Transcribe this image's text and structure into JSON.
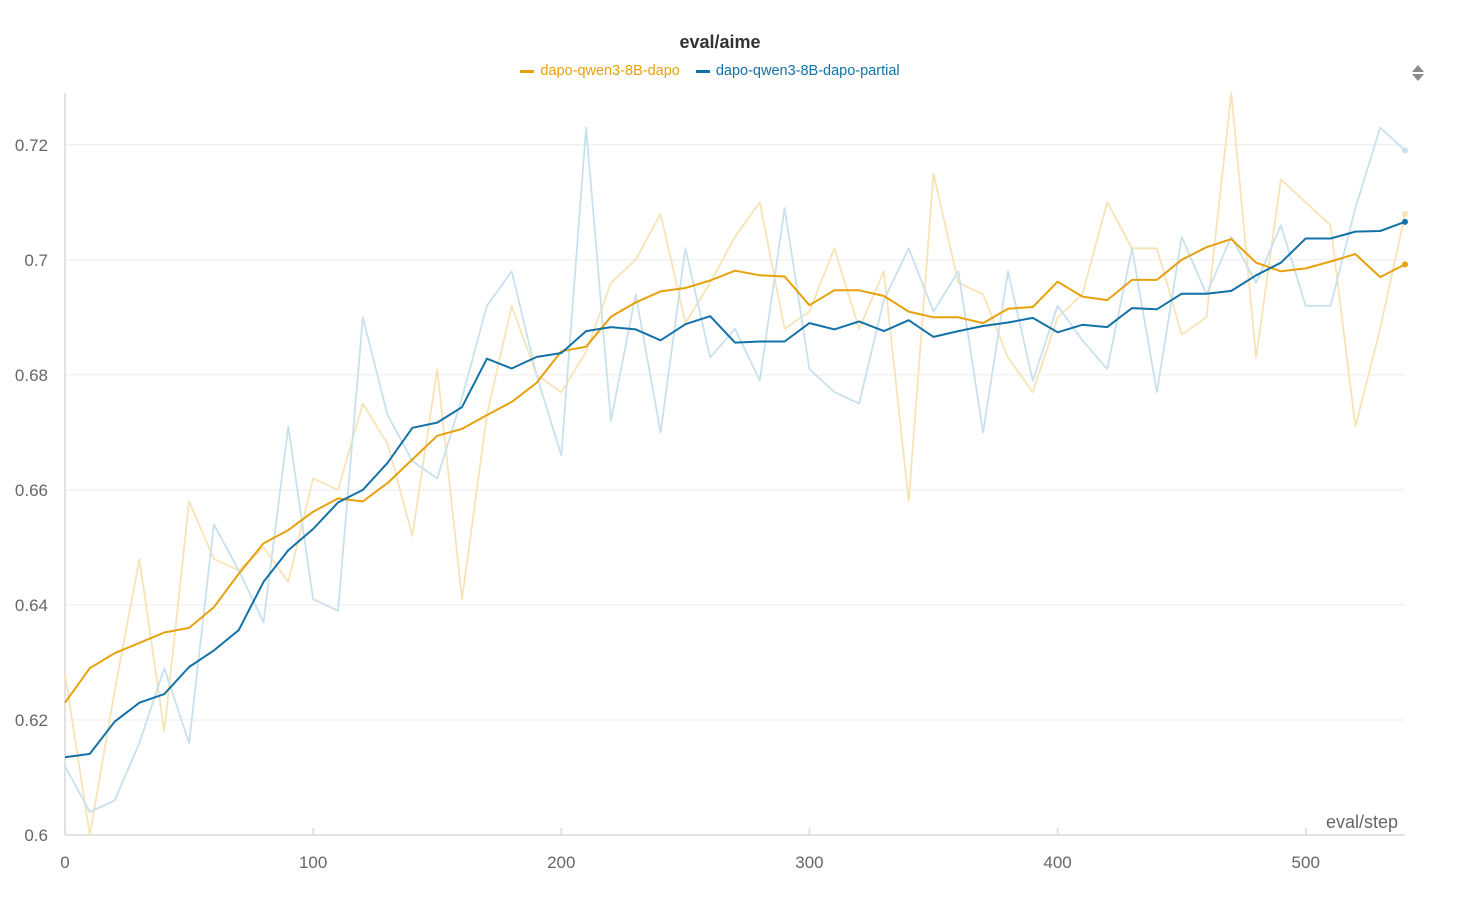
{
  "chart_data": {
    "type": "line",
    "title": "eval/aime",
    "xlabel": "eval/step",
    "ylabel": "",
    "xlim": [
      0,
      540
    ],
    "ylim": [
      0.6,
      0.729
    ],
    "xticks": [
      0,
      100,
      200,
      300,
      400,
      500
    ],
    "xtick_labels": [
      "0",
      "100",
      "200",
      "300",
      "400",
      "500"
    ],
    "yticks": [
      0.6,
      0.62,
      0.64,
      0.66,
      0.68,
      0.7,
      0.72
    ],
    "ytick_labels": [
      "0.6",
      "0.62",
      "0.64",
      "0.66",
      "0.68",
      "0.7",
      "0.72"
    ],
    "grid": true,
    "legend_position": "top-center",
    "x": [
      0,
      10,
      20,
      30,
      40,
      50,
      60,
      70,
      80,
      90,
      100,
      110,
      120,
      130,
      140,
      150,
      160,
      170,
      180,
      190,
      200,
      210,
      220,
      230,
      240,
      250,
      260,
      270,
      280,
      290,
      300,
      310,
      320,
      330,
      340,
      350,
      360,
      370,
      380,
      390,
      400,
      410,
      420,
      430,
      440,
      450,
      460,
      470,
      480,
      490,
      500,
      510,
      520,
      530,
      540
    ],
    "series": [
      {
        "name": "dapo-qwen3-8B-dapo",
        "color": "#e6a10c",
        "raw_color": "#f7e3b6",
        "raw": [
          0.628,
          0.6,
          0.625,
          0.648,
          0.618,
          0.658,
          0.648,
          0.646,
          0.65,
          0.644,
          0.662,
          0.66,
          0.675,
          0.668,
          0.652,
          0.681,
          0.641,
          0.673,
          0.692,
          0.68,
          0.677,
          0.684,
          0.696,
          0.7,
          0.708,
          0.689,
          0.696,
          0.704,
          0.71,
          0.688,
          0.691,
          0.702,
          0.688,
          0.698,
          0.658,
          0.715,
          0.696,
          0.694,
          0.683,
          0.677,
          0.69,
          0.694,
          0.71,
          0.702,
          0.702,
          0.687,
          0.69,
          0.729,
          0.683,
          0.714,
          0.71,
          0.706,
          0.671,
          0.688,
          0.708
        ],
        "smoothed": [
          0.623,
          0.629,
          0.6316,
          0.6334,
          0.6352,
          0.636,
          0.6396,
          0.6454,
          0.6507,
          0.653,
          0.6562,
          0.6585,
          0.658,
          0.6612,
          0.6653,
          0.6694,
          0.6706,
          0.673,
          0.6753,
          0.6786,
          0.6841,
          0.6849,
          0.6901,
          0.6926,
          0.6945,
          0.6951,
          0.6964,
          0.6981,
          0.6973,
          0.6971,
          0.6921,
          0.6947,
          0.6947,
          0.6937,
          0.691,
          0.69,
          0.69,
          0.689,
          0.6915,
          0.6918,
          0.6962,
          0.6936,
          0.693,
          0.6965,
          0.6965,
          0.7,
          0.7022,
          0.7036,
          0.6995,
          0.698,
          0.6985,
          0.6997,
          0.701,
          0.697,
          0.6992
        ]
      },
      {
        "name": "dapo-qwen3-8B-dapo-partial",
        "color": "#1272a8",
        "raw_color": "#c9e1ec",
        "raw": [
          0.612,
          0.604,
          0.606,
          0.616,
          0.629,
          0.616,
          0.654,
          0.646,
          0.637,
          0.671,
          0.641,
          0.639,
          0.69,
          0.673,
          0.665,
          0.662,
          0.676,
          0.692,
          0.698,
          0.68,
          0.666,
          0.723,
          0.672,
          0.694,
          0.67,
          0.702,
          0.683,
          0.688,
          0.679,
          0.709,
          0.681,
          0.677,
          0.675,
          0.693,
          0.702,
          0.691,
          0.698,
          0.67,
          0.698,
          0.679,
          0.692,
          0.686,
          0.681,
          0.702,
          0.677,
          0.704,
          0.694,
          0.704,
          0.696,
          0.706,
          0.692,
          0.692,
          0.709,
          0.723,
          0.719
        ],
        "smoothed": [
          0.6135,
          0.6141,
          0.6197,
          0.623,
          0.6245,
          0.6292,
          0.6321,
          0.6356,
          0.644,
          0.6495,
          0.6532,
          0.6578,
          0.66,
          0.6647,
          0.6708,
          0.6717,
          0.6744,
          0.6828,
          0.6811,
          0.6831,
          0.6838,
          0.6876,
          0.6883,
          0.6879,
          0.686,
          0.6888,
          0.6902,
          0.6856,
          0.6858,
          0.6858,
          0.689,
          0.6879,
          0.6893,
          0.6876,
          0.6895,
          0.6866,
          0.6876,
          0.6885,
          0.6891,
          0.6899,
          0.6874,
          0.6887,
          0.6883,
          0.6916,
          0.6914,
          0.6941,
          0.6941,
          0.6946,
          0.6973,
          0.6995,
          0.7037,
          0.7037,
          0.7049,
          0.705,
          0.7066
        ]
      }
    ]
  },
  "controls": {
    "sort_icon": "sort-updown-icon"
  }
}
